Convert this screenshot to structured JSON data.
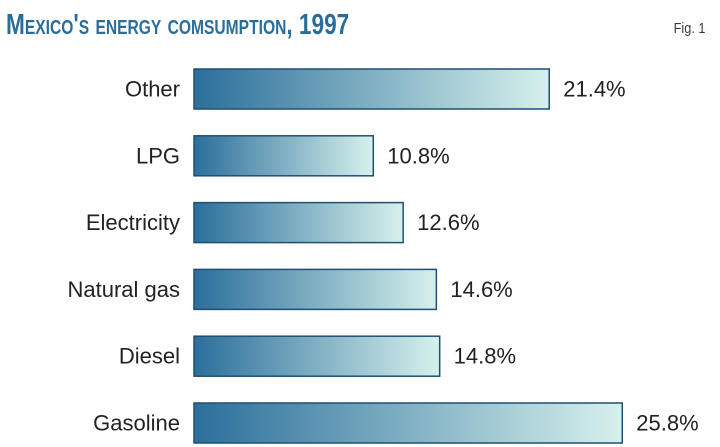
{
  "title": "Mexico's energy comsumption, 1997",
  "fig_label": "Fig. 1",
  "colors": {
    "title": "#2b6d9a",
    "bar_start": "#2b6f9b",
    "bar_end": "#d6f1ec",
    "bar_border": "#1f4f73"
  },
  "chart_data": {
    "type": "bar",
    "orientation": "horizontal",
    "title": "Mexico's energy comsumption, 1997",
    "categories": [
      "Other",
      "LPG",
      "Electricity",
      "Natural gas",
      "Diesel",
      "Gasoline"
    ],
    "values": [
      21.4,
      10.8,
      12.6,
      14.6,
      14.8,
      25.8
    ],
    "value_labels": [
      "21.4%",
      "10.8%",
      "12.6%",
      "14.6%",
      "14.8%",
      "25.8%"
    ],
    "unit": "%",
    "grid": false,
    "legend": "none"
  }
}
